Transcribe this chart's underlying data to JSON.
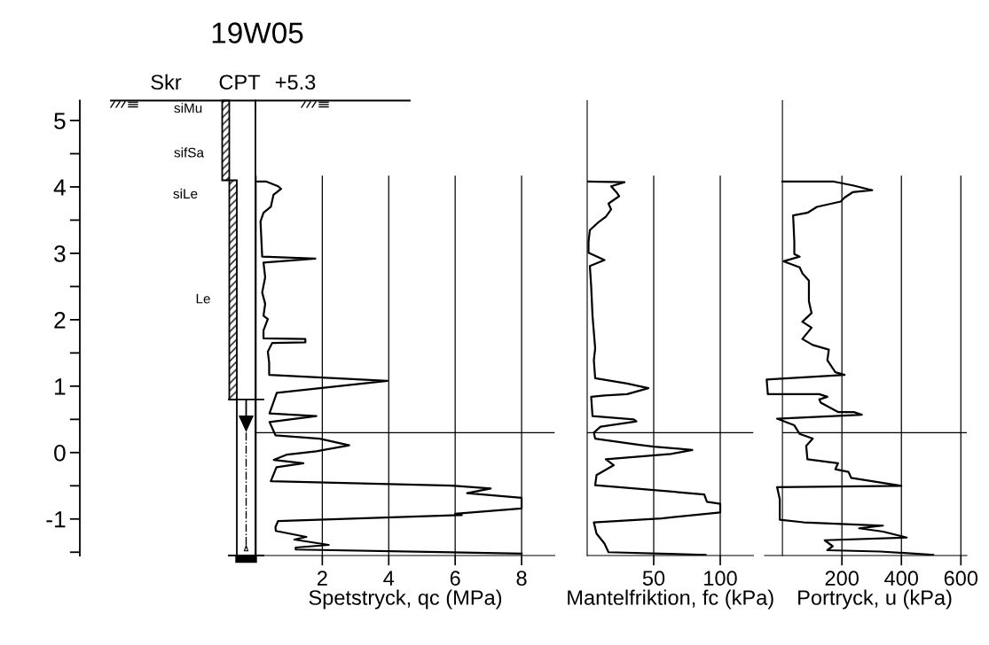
{
  "chart_data": [
    {
      "type": "line",
      "title": "19W05",
      "xlabel": "Spetstryck, qc (MPa)",
      "ylim": [
        -1.55,
        5.3
      ],
      "yticks": [
        5,
        4,
        3,
        2,
        1,
        0,
        -1
      ],
      "xlim": [
        -5.3,
        9
      ],
      "xticks": [
        2,
        4,
        6,
        8
      ],
      "grid": "x",
      "annotations": [
        "Skr",
        "CPT",
        "+5.3",
        "siMu",
        "sifSa",
        "siLe",
        "Le"
      ],
      "ref_lines": [
        {
          "axis": "y",
          "value": 0.3,
          "color": "#000000"
        }
      ],
      "series": [
        {
          "color": "#000000",
          "values": [
            4.08,
            4.08,
            4.01,
            3.97,
            3.88,
            3.7,
            3.61,
            3.48,
            2.95,
            2.92,
            2.86,
            2.64,
            2.41,
            2.24,
            2.06,
            2.01,
            1.84,
            1.72,
            1.71,
            1.66,
            1.65,
            1.52,
            1.35,
            1.17,
            1.08,
            0.9,
            0.59,
            0.55,
            0.46,
            0.26,
            0.21,
            0.11,
            0.02,
            -0.03,
            -0.11,
            -0.16,
            -0.22,
            -0.43,
            -0.5,
            -0.54,
            -0.61,
            -0.68,
            -0.84,
            -0.92,
            -0.94,
            -1.03,
            -1.12,
            -1.18,
            -1.27,
            -1.31,
            -1.39,
            -1.43,
            -1.46,
            -1.52
          ],
          "x": [
            0.05,
            0.32,
            0.67,
            0.76,
            0.53,
            0.45,
            0.23,
            0.14,
            0.19,
            1.79,
            0.23,
            0.28,
            0.19,
            0.28,
            0.23,
            0.36,
            0.23,
            0.23,
            1.49,
            1.49,
            0.49,
            0.36,
            0.4,
            0.4,
            3.96,
            0.63,
            0.41,
            1.82,
            0.41,
            0.59,
            1.92,
            2.81,
            1.82,
            0.94,
            0.54,
            1.43,
            0.62,
            0.45,
            6.0,
            7.07,
            6.36,
            8.0,
            8.0,
            6.0,
            6.2,
            0.67,
            0.59,
            0.6,
            1.52,
            1.16,
            2.19,
            1.2,
            1.2,
            8.0
          ]
        }
      ]
    },
    {
      "type": "line",
      "xlabel": "Mantelfriktion, fc (kPa)",
      "ylim": [
        -1.55,
        5.3
      ],
      "tick_labels": "x",
      "xlim": [
        0,
        125
      ],
      "xticks": [
        50,
        100
      ],
      "grid": "x",
      "ref_lines": [
        {
          "axis": "y",
          "value": 0.3,
          "color": "#000000"
        }
      ],
      "series": [
        {
          "color": "#000000",
          "values": [
            4.08,
            4.07,
            4.01,
            3.92,
            3.86,
            3.75,
            3.66,
            3.55,
            3.46,
            3.35,
            3.17,
            3.01,
            2.9,
            2.81,
            2.5,
            2.06,
            1.57,
            1.39,
            1.12,
            1.04,
            0.97,
            0.88,
            0.86,
            0.84,
            0.55,
            0.5,
            0.47,
            0.39,
            0.3,
            0.21,
            0.12,
            0.09,
            0.04,
            -0.02,
            -0.1,
            -0.19,
            -0.34,
            -0.49,
            -0.63,
            -0.74,
            -0.77,
            -0.9,
            -0.99,
            -1.05,
            -1.22,
            -1.37,
            -1.5,
            -1.54
          ],
          "x": [
            0,
            28,
            18,
            22,
            24,
            16,
            18,
            14,
            8,
            2,
            1,
            1,
            13,
            2,
            3,
            4,
            6,
            5,
            6,
            30,
            46,
            30,
            13,
            3,
            4,
            35,
            37,
            10,
            5,
            6,
            38,
            50,
            79,
            63,
            14,
            20,
            7,
            6,
            88,
            90,
            100,
            100,
            56,
            5,
            7,
            13,
            16,
            89
          ]
        }
      ]
    },
    {
      "type": "line",
      "xlabel": "Portryck, u (kPa)",
      "ylim": [
        -1.55,
        5.3
      ],
      "tick_labels": "x",
      "xlim": [
        -60,
        620
      ],
      "xticks": [
        200,
        400,
        600
      ],
      "grid": "x",
      "ref_lines": [
        {
          "axis": "y",
          "value": 0.3,
          "color": "#000000"
        }
      ],
      "series": [
        {
          "color": "#000000",
          "values": [
            4.08,
            4.08,
            4.02,
            3.95,
            3.92,
            3.84,
            3.78,
            3.7,
            3.61,
            3.57,
            3.17,
            2.99,
            2.95,
            2.88,
            2.79,
            2.7,
            2.59,
            2.28,
            2.1,
            1.97,
            1.88,
            1.71,
            1.62,
            1.55,
            1.39,
            1.21,
            1.17,
            1.1,
            0.88,
            0.88,
            0.84,
            0.8,
            0.75,
            0.61,
            0.61,
            0.57,
            0.51,
            0.41,
            0.28,
            0.21,
            0.1,
            -0.1,
            -0.16,
            -0.25,
            -0.29,
            -0.38,
            -0.5,
            -0.52,
            -0.7,
            -1.01,
            -1.05,
            -1.1,
            -1.14,
            -1.19,
            -1.28,
            -1.32,
            -1.41,
            -1.47,
            -1.49,
            -1.54
          ],
          "x": [
            0,
            173,
            240,
            302,
            236,
            209,
            196,
            116,
            84,
            36,
            40,
            40,
            58,
            4,
            58,
            67,
            89,
            89,
            98,
            67,
            98,
            67,
            102,
            156,
            151,
            178,
            209,
            -53,
            -49,
            124,
            151,
            124,
            129,
            187,
            240,
            267,
            -18,
            40,
            58,
            102,
            80,
            84,
            187,
            178,
            222,
            231,
            400,
            -18,
            -9,
            -9,
            71,
            338,
            258,
            338,
            418,
            142,
            169,
            151,
            329,
            507
          ]
        }
      ]
    }
  ]
}
